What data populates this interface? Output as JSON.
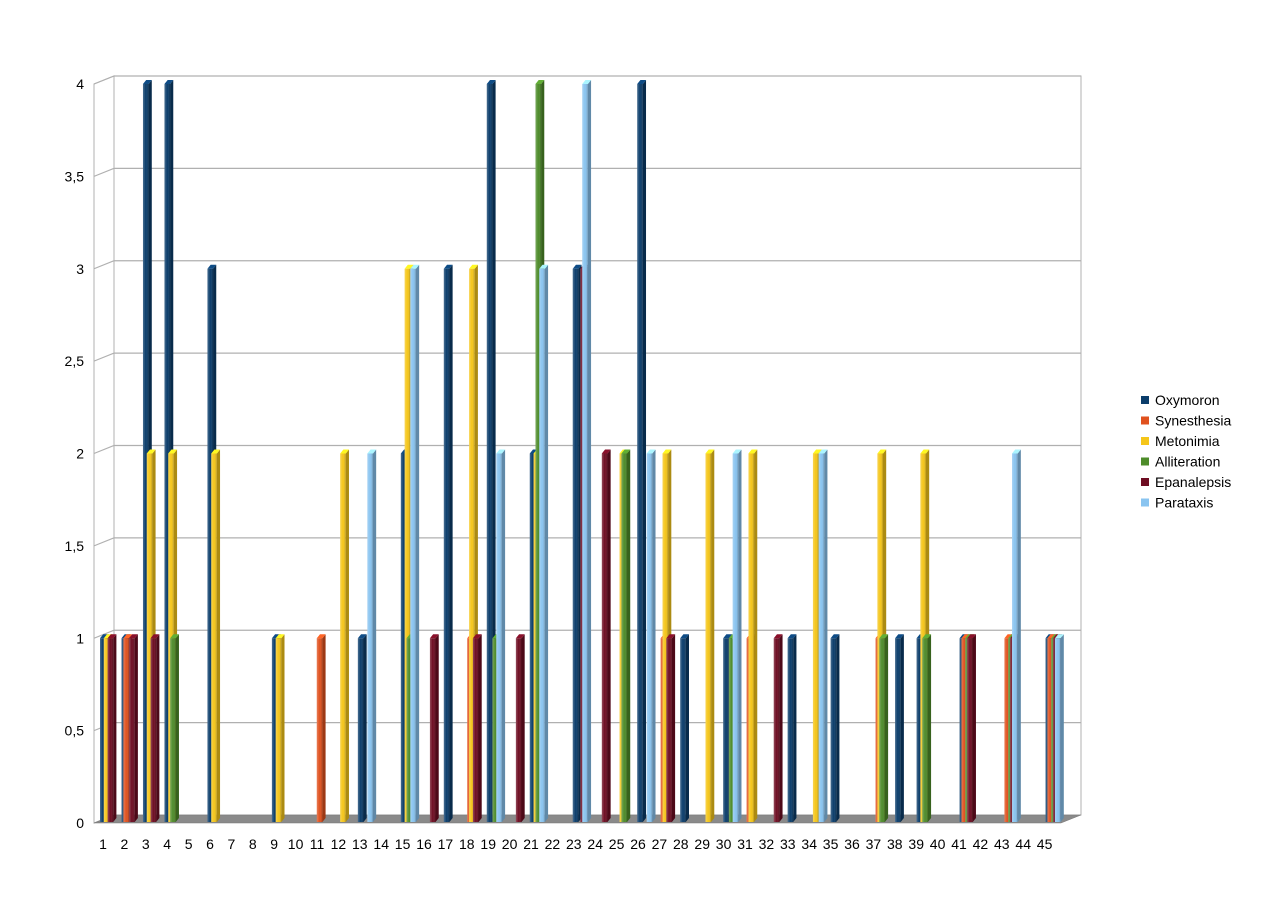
{
  "chart_data": {
    "type": "bar",
    "style": "3d-clustered-column",
    "title": "",
    "xlabel": "",
    "ylabel": "",
    "ylim": [
      0,
      4
    ],
    "grid": true,
    "legend_position": "right",
    "y_tick_labels": [
      "0",
      "0,5",
      "1",
      "1,5",
      "2",
      "2,5",
      "3",
      "3,5",
      "4"
    ],
    "categories": [
      "1",
      "2",
      "3",
      "4",
      "5",
      "6",
      "7",
      "8",
      "9",
      "10",
      "11",
      "12",
      "13",
      "14",
      "15",
      "16",
      "17",
      "18",
      "19",
      "20",
      "21",
      "22",
      "23",
      "24",
      "25",
      "26",
      "27",
      "28",
      "29",
      "30",
      "31",
      "32",
      "33",
      "34",
      "35",
      "36",
      "37",
      "38",
      "39",
      "40",
      "41",
      "42",
      "43",
      "44",
      "45"
    ],
    "series": [
      {
        "name": "Oxymoron",
        "color": "#0b3d6b",
        "values": [
          1,
          1,
          4,
          4,
          0,
          3,
          0,
          0,
          1,
          0,
          0,
          0,
          1,
          0,
          2,
          0,
          3,
          0,
          4,
          0,
          2,
          0,
          3,
          0,
          0,
          4,
          0,
          1,
          0,
          1,
          0,
          0,
          1,
          0,
          1,
          0,
          0,
          1,
          1,
          0,
          1,
          0,
          0,
          0,
          1
        ]
      },
      {
        "name": "Synesthesia",
        "color": "#e0511e",
        "values": [
          0,
          1,
          0,
          0,
          0,
          0,
          0,
          0,
          0,
          0,
          1,
          0,
          0,
          0,
          0,
          0,
          0,
          1,
          0,
          0,
          0,
          0,
          0,
          0,
          0,
          0,
          1,
          0,
          0,
          0,
          1,
          0,
          0,
          0,
          0,
          0,
          1,
          0,
          0,
          0,
          1,
          0,
          1,
          0,
          1
        ]
      },
      {
        "name": "Metonimia",
        "color": "#f5c61a",
        "values": [
          1,
          0,
          2,
          2,
          0,
          2,
          0,
          0,
          1,
          0,
          0,
          2,
          0,
          0,
          3,
          0,
          0,
          3,
          0,
          0,
          2,
          0,
          0,
          0,
          2,
          0,
          2,
          0,
          2,
          0,
          2,
          0,
          0,
          2,
          0,
          0,
          2,
          0,
          2,
          0,
          0,
          0,
          0,
          0,
          0
        ]
      },
      {
        "name": "Alliteration",
        "color": "#4e8c2a",
        "values": [
          0,
          0,
          0,
          1,
          0,
          0,
          0,
          0,
          0,
          0,
          0,
          0,
          0,
          0,
          1,
          0,
          0,
          0,
          1,
          0,
          4,
          0,
          0,
          0,
          2,
          0,
          0,
          0,
          0,
          1,
          0,
          0,
          0,
          0,
          0,
          0,
          1,
          0,
          1,
          0,
          1,
          0,
          1,
          0,
          1
        ]
      },
      {
        "name": "Epanalepsis",
        "color": "#6e0d22",
        "values": [
          1,
          1,
          1,
          0,
          0,
          0,
          0,
          0,
          0,
          0,
          0,
          0,
          0,
          0,
          0,
          1,
          0,
          1,
          0,
          1,
          0,
          0,
          3,
          2,
          0,
          0,
          1,
          0,
          0,
          0,
          0,
          1,
          0,
          0,
          0,
          0,
          0,
          0,
          0,
          0,
          1,
          0,
          1,
          0,
          1
        ]
      },
      {
        "name": "Parataxis",
        "color": "#89c4f0",
        "values": [
          0,
          0,
          0,
          0,
          0,
          0,
          0,
          0,
          0,
          0,
          0,
          0,
          2,
          0,
          3,
          0,
          0,
          0,
          2,
          0,
          3,
          0,
          4,
          0,
          0,
          2,
          0,
          0,
          0,
          2,
          0,
          0,
          0,
          2,
          0,
          0,
          0,
          0,
          0,
          0,
          0,
          0,
          2,
          0,
          1
        ]
      }
    ]
  }
}
